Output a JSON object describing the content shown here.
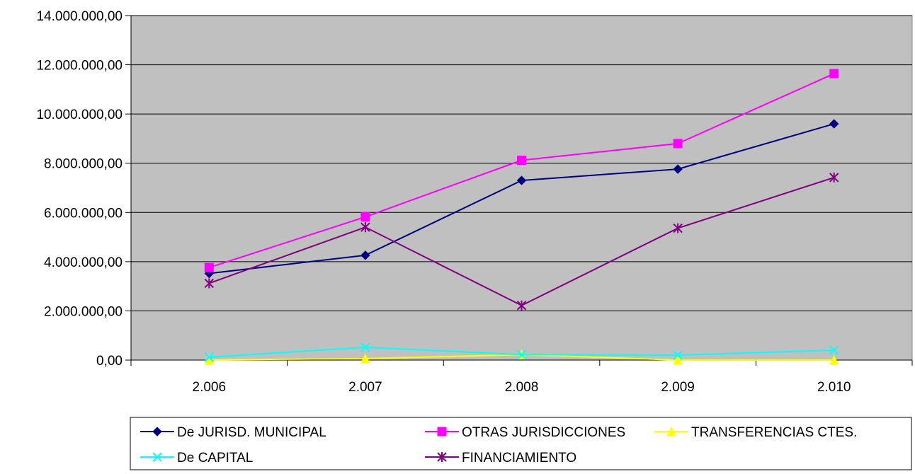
{
  "chart_data": {
    "type": "line",
    "title": "",
    "xlabel": "",
    "ylabel": "",
    "categories": [
      "2.006",
      "2.007",
      "2.008",
      "2.009",
      "2.010"
    ],
    "ylim": [
      0,
      14000000
    ],
    "ytick_labels": [
      "0,00",
      "2.000.000,00",
      "4.000.000,00",
      "6.000.000,00",
      "8.000.000,00",
      "10.000.000,00",
      "12.000.000,00",
      "14.000.000,00"
    ],
    "ytick_values": [
      0,
      2000000,
      4000000,
      6000000,
      8000000,
      10000000,
      12000000,
      14000000
    ],
    "grid": true,
    "legend_position": "bottom",
    "plot_background": "#c0c0c0",
    "series": [
      {
        "name": "De JURISD. MUNICIPAL",
        "color": "#000080",
        "marker": "diamond",
        "values": [
          3520000,
          4260000,
          7300000,
          7760000,
          9600000
        ]
      },
      {
        "name": "OTRAS JURISDICCIONES",
        "color": "#ff00ff",
        "marker": "square",
        "values": [
          3760000,
          5820000,
          8120000,
          8800000,
          11640000
        ]
      },
      {
        "name": "TRANSFERENCIAS CTES.",
        "color": "#ffff00",
        "marker": "triangle",
        "values": [
          10000,
          60000,
          220000,
          0,
          0
        ]
      },
      {
        "name": "De CAPITAL",
        "color": "#00ffff",
        "marker": "x",
        "values": [
          120000,
          520000,
          220000,
          200000,
          400000
        ]
      },
      {
        "name": "FINANCIAMIENTO",
        "color": "#800080",
        "marker": "star",
        "values": [
          3120000,
          5400000,
          2220000,
          5360000,
          7420000
        ]
      }
    ]
  }
}
